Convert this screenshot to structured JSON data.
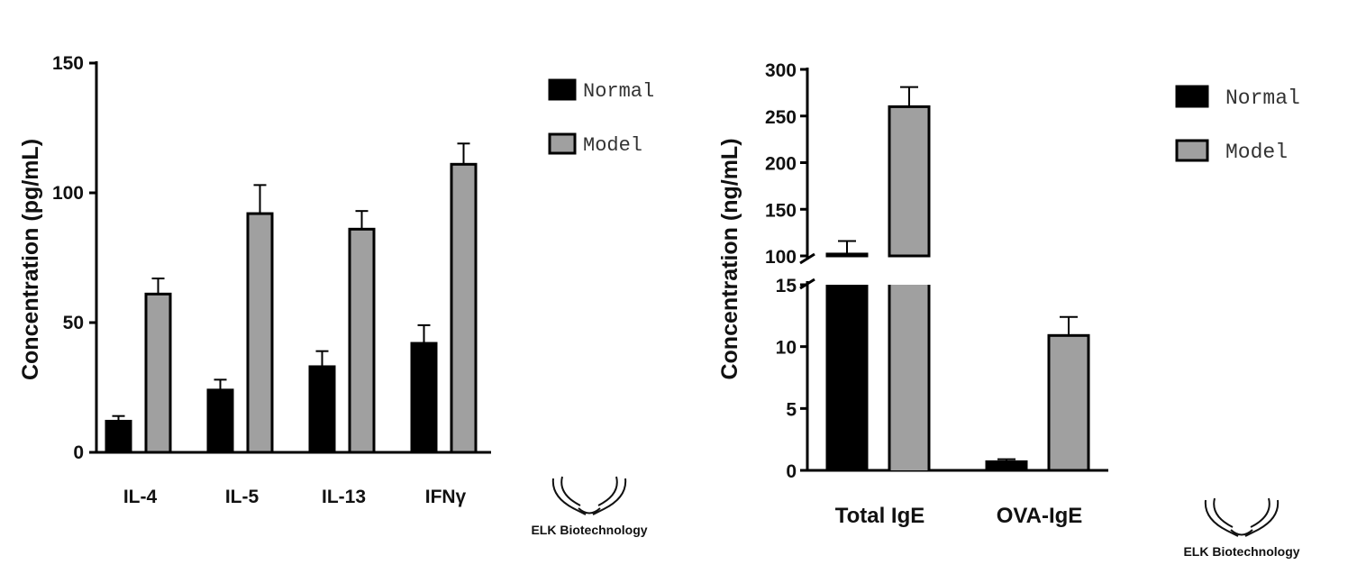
{
  "chart_data": [
    {
      "type": "bar",
      "ylabel": "Concentration (pg/mL)",
      "categories": [
        "IL-4",
        "IL-5",
        "IL-13",
        "IFNγ"
      ],
      "ylim": [
        0,
        150
      ],
      "yticks": [
        0,
        50,
        100,
        150
      ],
      "series": [
        {
          "name": "Normal",
          "values": [
            12,
            24,
            33,
            42
          ],
          "errors": [
            2,
            4,
            6,
            7
          ],
          "color": "#000000"
        },
        {
          "name": "Model",
          "values": [
            61,
            92,
            86,
            111
          ],
          "errors": [
            6,
            11,
            7,
            8
          ],
          "color": "#a0a0a0"
        }
      ],
      "legend": "top-right",
      "grid": false
    },
    {
      "type": "bar",
      "ylabel": "Concentration (ng/mL)",
      "categories": [
        "Total IgE",
        "OVA-IgE"
      ],
      "axis_break": {
        "lower": [
          0,
          15
        ],
        "upper": [
          100,
          300
        ]
      },
      "yticks_lower": [
        0,
        5,
        10,
        15
      ],
      "yticks_upper": [
        100,
        150,
        200,
        250,
        300
      ],
      "series": [
        {
          "name": "Normal",
          "values": [
            102,
            0.7
          ],
          "errors": [
            14,
            0.2
          ],
          "color": "#000000"
        },
        {
          "name": "Model",
          "values": [
            260,
            10.9
          ],
          "errors": [
            21,
            1.5
          ],
          "color": "#a0a0a0"
        }
      ],
      "legend": "top-right",
      "grid": false
    }
  ],
  "logo": {
    "text": "ELK Biotechnology",
    "icon": "dna-strands-icon"
  }
}
